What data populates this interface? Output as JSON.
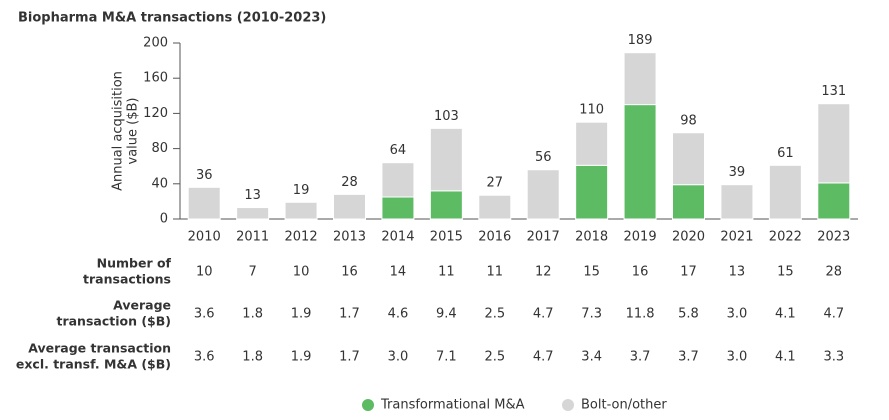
{
  "chart_data": {
    "type": "stacked_bar",
    "title": "Biopharma M&A transactions (2010-2023)",
    "y_label": [
      "Annual acquisition",
      "value ($B)"
    ],
    "categories": [
      "2010",
      "2011",
      "2012",
      "2013",
      "2014",
      "2015",
      "2016",
      "2017",
      "2018",
      "2019",
      "2020",
      "2021",
      "2022",
      "2023"
    ],
    "series": [
      {
        "name": "Transformational M&A",
        "color": "#5dbb63",
        "values": [
          0,
          0,
          0,
          0,
          25,
          32,
          0,
          0,
          61,
          130,
          39,
          0,
          0,
          41
        ]
      },
      {
        "name": "Bolt-on/other",
        "color": "#d6d6d6",
        "values": [
          36,
          13,
          19,
          28,
          39,
          71,
          27,
          56,
          49,
          59,
          59,
          39,
          61,
          90
        ]
      }
    ],
    "totals": [
      36,
      13,
      19,
      28,
      64,
      103,
      27,
      56,
      110,
      189,
      98,
      39,
      61,
      131
    ],
    "ylim": [
      0,
      200
    ],
    "yticks": [
      0,
      40,
      80,
      120,
      160,
      200
    ],
    "legend": "bottom"
  },
  "table": {
    "rows": [
      {
        "label": [
          "Number of",
          "transactions"
        ],
        "values": [
          "10",
          "7",
          "10",
          "16",
          "14",
          "11",
          "11",
          "12",
          "15",
          "16",
          "17",
          "13",
          "15",
          "28"
        ]
      },
      {
        "label": [
          "Average",
          "transaction ($B)"
        ],
        "values": [
          "3.6",
          "1.8",
          "1.9",
          "1.7",
          "4.6",
          "9.4",
          "2.5",
          "4.7",
          "7.3",
          "11.8",
          "5.8",
          "3.0",
          "4.1",
          "4.7"
        ]
      },
      {
        "label": [
          "Average transaction",
          "excl. transf. M&A ($B)"
        ],
        "values": [
          "3.6",
          "1.8",
          "1.9",
          "1.7",
          "3.0",
          "7.1",
          "2.5",
          "4.7",
          "3.4",
          "3.7",
          "3.7",
          "3.0",
          "4.1",
          "3.3"
        ]
      }
    ]
  }
}
